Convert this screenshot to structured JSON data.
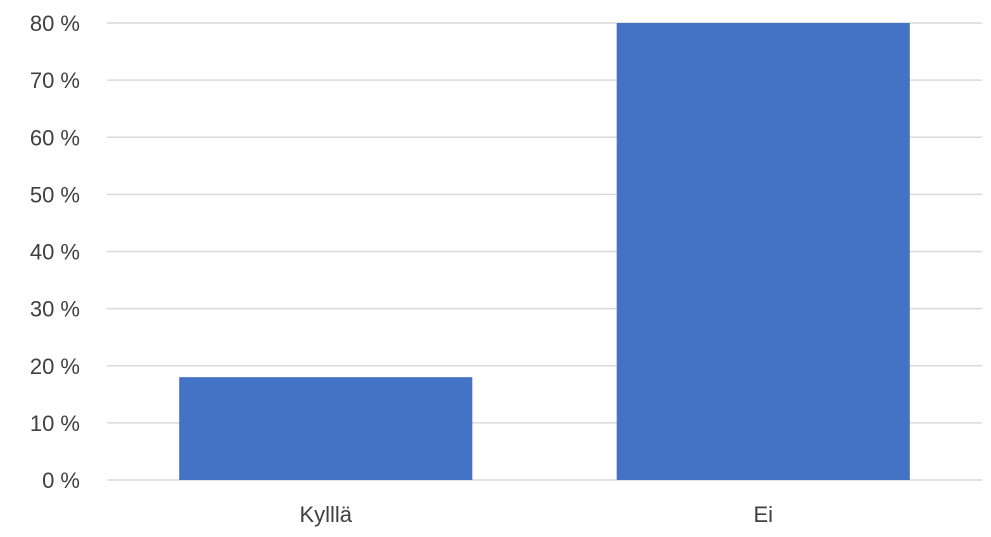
{
  "chart_data": {
    "type": "bar",
    "categories": [
      "Kylllä",
      "Ei"
    ],
    "values": [
      18,
      80
    ],
    "ylim": [
      0,
      80
    ],
    "yticks": [
      0,
      10,
      20,
      30,
      40,
      50,
      60,
      70,
      80
    ],
    "ytick_labels": [
      "0 %",
      "10 %",
      "20 %",
      "30 %",
      "40 %",
      "50 %",
      "60 %",
      "70 %",
      "80 %"
    ],
    "grid": true,
    "legend": false,
    "bar_color": "#4472C4",
    "grid_color": "#D9D9D9",
    "text_color": "#404040"
  }
}
